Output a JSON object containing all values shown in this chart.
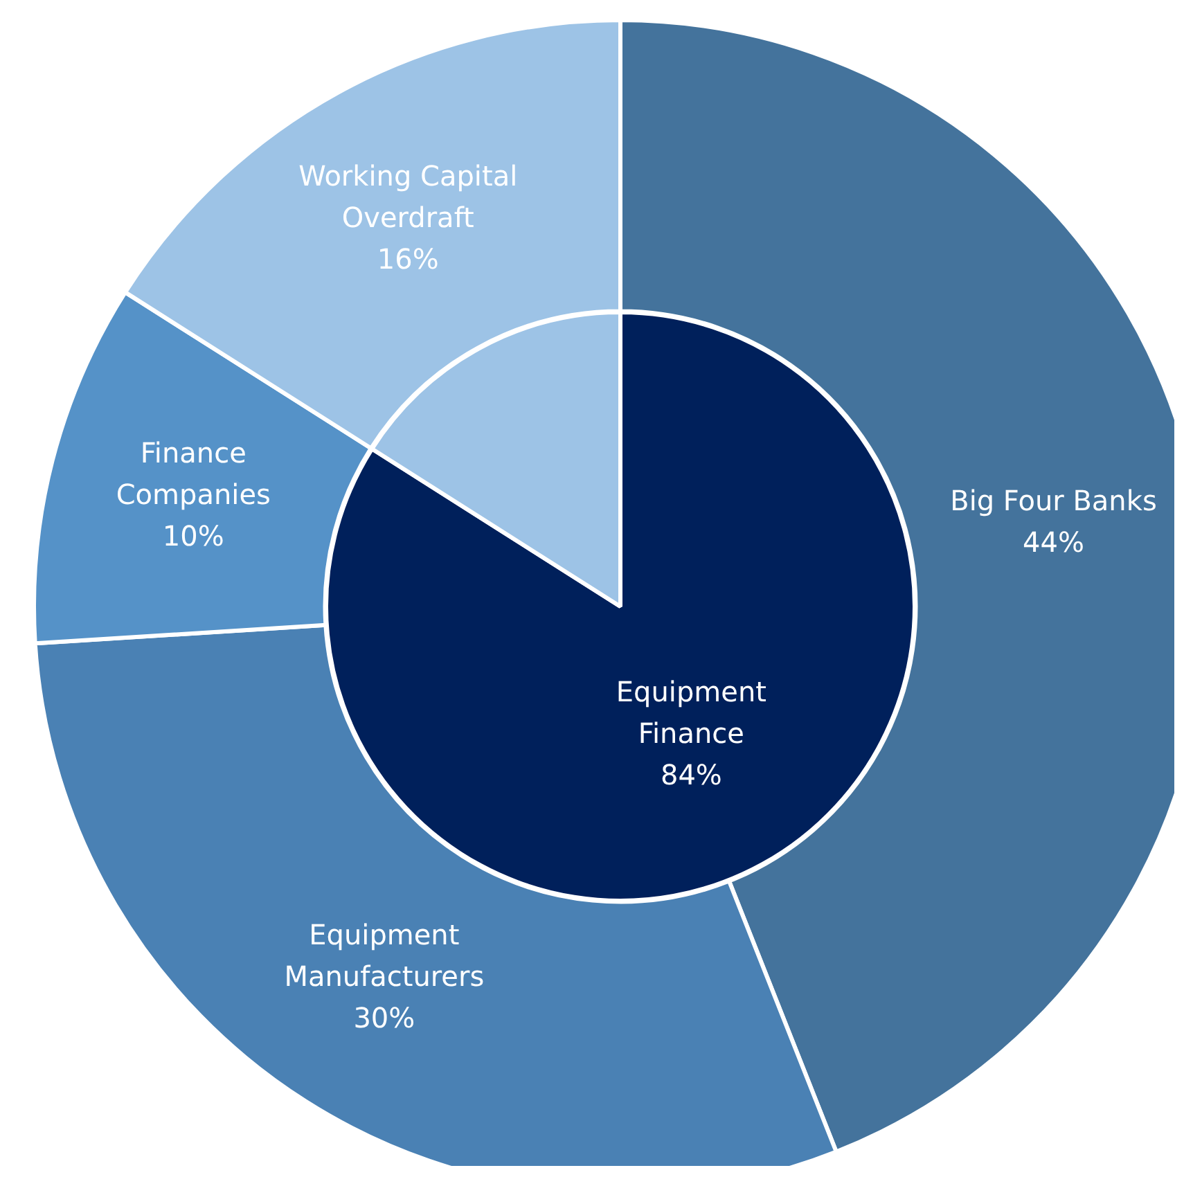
{
  "chart_data": [
    {
      "type": "donut",
      "categories": [
        "Big Four Banks",
        "Equipment Manufacturers",
        "Finance Companies",
        "Working Capital Overdraft"
      ],
      "values": [
        44,
        30,
        10,
        16
      ],
      "colors": [
        "#44739c",
        "#4a81b4",
        "#5592c8",
        "#9dc3e6"
      ],
      "value_labels": [
        "44%",
        "30%",
        "10%",
        "16%"
      ],
      "legend": false
    },
    {
      "type": "pie",
      "categories": [
        "Equipment Finance",
        null
      ],
      "values": [
        84,
        16
      ],
      "colors": [
        "#00205b",
        "#9dc3e6"
      ],
      "value_labels": [
        "84%",
        null
      ],
      "legend": false
    }
  ]
}
